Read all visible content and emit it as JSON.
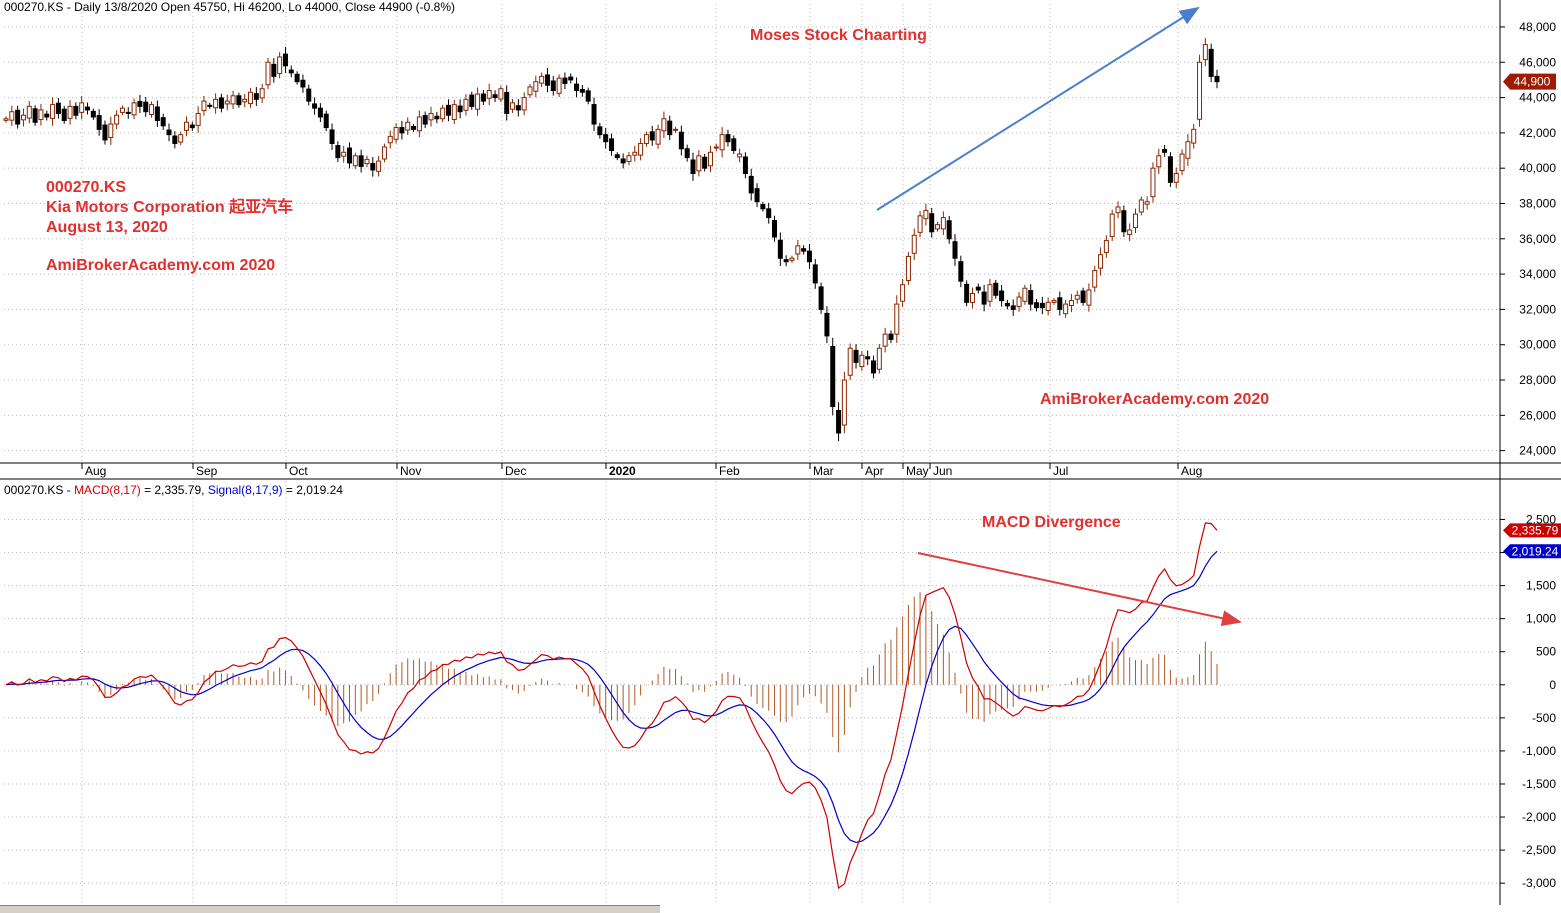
{
  "price_header": {
    "symbol": "000270.KS",
    "rest": "- Daily 13/8/2020 Open 45750, Hi 46200, Lo 44000, Close 44900 (-0.8%)"
  },
  "macd_header": {
    "symbol": "000270.KS -",
    "macd_label": "MACD(8,17)",
    "macd_value": "= 2,335.79,",
    "signal_label": "Signal(8,17,9)",
    "signal_value": "= 2,019.24"
  },
  "annotations": {
    "title": "Moses Stock Chaarting",
    "ticker": "000270.KS",
    "company": "Kia Motors Corporation 起亚汽车",
    "date": "August 13, 2020",
    "site_left": "AmiBrokerAcademy.com  2020",
    "site_right": "AmiBrokerAcademy.com 2020",
    "macd_note": "MACD Divergence"
  },
  "colors": {
    "up_candle": "#8b2500",
    "down_candle": "#000000",
    "macd_line": "#cc0000",
    "signal_line": "#0000cc",
    "histogram": "#b05a2a",
    "annotation": "#e03030",
    "arrow_up": "#4a7fd0",
    "arrow_down": "#e04040",
    "price_tag": "#a01a00"
  },
  "chart_data": [
    {
      "type": "candlestick",
      "title": "",
      "x_labels": [
        "Aug",
        "Sep",
        "Oct",
        "Nov",
        "Dec",
        "2020",
        "Feb",
        "Mar",
        "Apr",
        "May",
        "Jun",
        "Jul",
        "Aug"
      ],
      "y_ticks": [
        24000,
        26000,
        28000,
        30000,
        32000,
        34000,
        36000,
        38000,
        40000,
        42000,
        44000,
        46000,
        48000
      ],
      "y_tick_labels": [
        "24,000",
        "26,000",
        "28,000",
        "30,000",
        "32,000",
        "34,000",
        "36,000",
        "38,000",
        "40,000",
        "42,000",
        "44,000",
        "46,000",
        "48,000"
      ],
      "ylim": [
        23300,
        49300
      ],
      "last_close": 44900,
      "last_close_label": "44,900",
      "closes": [
        42800,
        43200,
        42500,
        43000,
        43500,
        42600,
        43300,
        42900,
        43600,
        43100,
        42700,
        43500,
        43000,
        43700,
        43300,
        42900,
        42200,
        41600,
        42500,
        43000,
        43400,
        43100,
        43700,
        43500,
        43200,
        43600,
        42700,
        42400,
        41900,
        41400,
        41900,
        42600,
        42300,
        43100,
        43800,
        43500,
        43900,
        43400,
        43800,
        44100,
        43600,
        43900,
        44300,
        43900,
        44500,
        46000,
        45200,
        46300,
        45800,
        45400,
        44900,
        44600,
        43800,
        43400,
        42900,
        42300,
        41400,
        40600,
        40900,
        40300,
        40700,
        40100,
        40500,
        39900,
        40400,
        41200,
        41800,
        42300,
        42000,
        42600,
        42200,
        42900,
        42500,
        43100,
        42800,
        43400,
        43000,
        43600,
        43200,
        43900,
        43500,
        44200,
        43800,
        44400,
        44000,
        44500,
        43100,
        43700,
        43300,
        44000,
        44600,
        44900,
        45200,
        44700,
        44400,
        45100,
        44800,
        45000,
        44400,
        44300,
        43800,
        42500,
        41900,
        41500,
        41000,
        40600,
        40300,
        40700,
        40900,
        41400,
        41900,
        41600,
        42200,
        42800,
        41900,
        42200,
        41100,
        40600,
        39700,
        40700,
        40000,
        40900,
        41200,
        41900,
        41500,
        41000,
        40800,
        39700,
        38600,
        38100,
        37700,
        37200,
        36100,
        34900,
        34700,
        34900,
        35600,
        35300,
        34700,
        33500,
        32000,
        30500,
        26500,
        25000,
        28000,
        29800,
        29000,
        29400,
        29200,
        28400,
        29800,
        30600,
        30300,
        32300,
        33400,
        35000,
        36200,
        37300,
        37600,
        36400,
        36800,
        37200,
        36000,
        34900,
        33600,
        32400,
        32900,
        33100,
        32300,
        33400,
        32800,
        32500,
        32200,
        32000,
        32700,
        33200,
        32300,
        32100,
        32100,
        32400,
        32500,
        32000,
        32300,
        32500,
        32800,
        32400,
        33100,
        34200,
        35100,
        35900,
        37400,
        37800,
        36400,
        36500,
        37400,
        38200,
        38100,
        40000,
        40700,
        40900,
        39200,
        39700,
        40800,
        41500,
        42200,
        46000,
        47000,
        45200,
        44900
      ]
    },
    {
      "type": "line",
      "title": "",
      "y_ticks": [
        -3000,
        -2500,
        -2000,
        -1500,
        -1000,
        -500,
        0,
        500,
        1000,
        1500,
        2000,
        2500
      ],
      "y_tick_labels": [
        "-3,000",
        "-2,500",
        "-2,000",
        "-1,500",
        "-1,000",
        "-500",
        "0",
        "500",
        "1,000",
        "1,500",
        "2,000",
        "2,500"
      ],
      "ylim": [
        -3330,
        2870
      ],
      "series": [
        {
          "name": "MACD(8,17)",
          "last_value": 2335.79,
          "last_label": "2,335.79"
        },
        {
          "name": "Signal(8,17,9)",
          "last_value": 2019.24,
          "last_label": "2,019.24"
        }
      ],
      "histogram_label": ""
    }
  ]
}
